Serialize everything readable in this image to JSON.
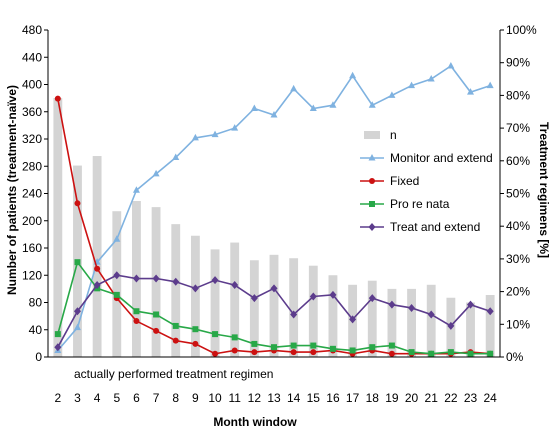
{
  "chart_data": {
    "type": "bar+line",
    "title": "",
    "xlabel": "Month window",
    "ylabel_left": "Number of patients (treatment-naïve)",
    "ylabel_right": "Treatment regimens [%]",
    "annotation": "actually performed treatment regimen",
    "x": [
      "2",
      "3",
      "4",
      "5",
      "6",
      "7",
      "8",
      "9",
      "10",
      "11",
      "12",
      "13",
      "14",
      "15",
      "16",
      "17",
      "18",
      "19",
      "20",
      "21",
      "22",
      "23",
      "24"
    ],
    "ylim_left": [
      0,
      480
    ],
    "ylim_right": [
      0,
      100
    ],
    "yticks_left": [
      "0",
      "40",
      "80",
      "120",
      "160",
      "200",
      "240",
      "280",
      "320",
      "360",
      "400",
      "440",
      "480"
    ],
    "yticks_right": [
      "0%",
      "10%",
      "20%",
      "30%",
      "40%",
      "50%",
      "60%",
      "70%",
      "80%",
      "90%",
      "100%"
    ],
    "bar_series": {
      "name": "n",
      "color": "#d4d4d4",
      "values": [
        380,
        281,
        295,
        214,
        229,
        220,
        195,
        178,
        158,
        168,
        142,
        150,
        145,
        134,
        120,
        106,
        112,
        100,
        100,
        106,
        87,
        80,
        91
      ]
    },
    "line_series": [
      {
        "name": "Monitor and extend",
        "color": "#7fb2e0",
        "marker": "triangle",
        "values": [
          2,
          9,
          29,
          36,
          51,
          56,
          61,
          67,
          68,
          70,
          76,
          74,
          82,
          76,
          77,
          86,
          77,
          80,
          83,
          85,
          89,
          81,
          83
        ]
      },
      {
        "name": "Fixed",
        "color": "#cc1111",
        "marker": "circle",
        "values": [
          79,
          47,
          27,
          18,
          11,
          8,
          5,
          4,
          1,
          2,
          1.5,
          2,
          1.5,
          1.5,
          2,
          1,
          2,
          1,
          1,
          1,
          1,
          1.5,
          1
        ]
      },
      {
        "name": "Pro re nata",
        "color": "#28a848",
        "marker": "square",
        "values": [
          7,
          29,
          21,
          19,
          14,
          13,
          9.5,
          8.5,
          7,
          6,
          4,
          3,
          3.5,
          3.5,
          2.5,
          2,
          3,
          3.5,
          1.5,
          1,
          1.5,
          1,
          1
        ]
      },
      {
        "name": "Treat and extend",
        "color": "#5c3c8c",
        "marker": "diamond",
        "values": [
          3,
          14,
          22,
          25,
          24,
          24,
          23,
          21,
          23.5,
          22,
          18,
          21,
          13,
          18.5,
          19,
          11.5,
          18,
          16,
          15,
          13,
          9.5,
          16,
          14
        ]
      }
    ],
    "legend_position": "right-middle",
    "grid": false
  }
}
